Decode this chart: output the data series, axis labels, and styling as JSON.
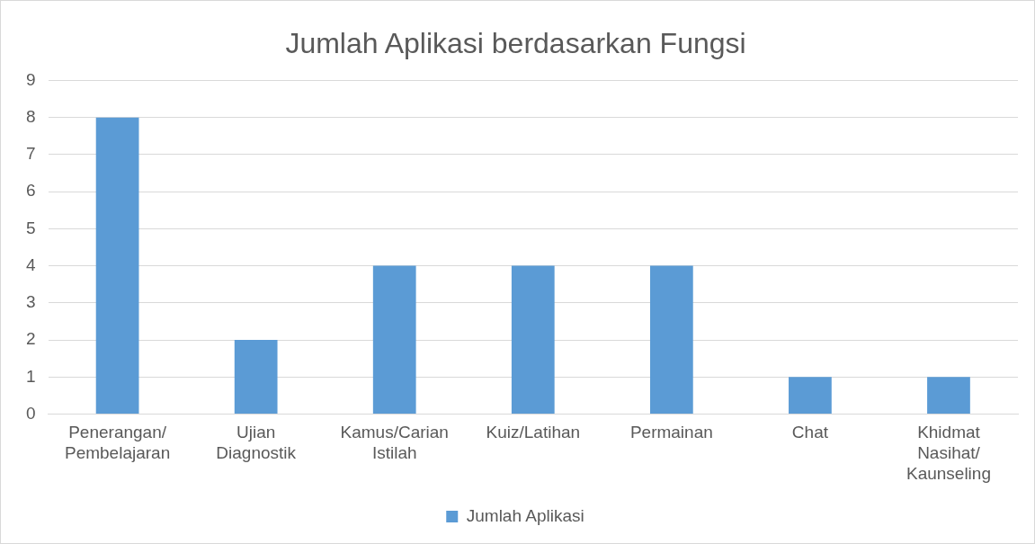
{
  "chart_data": {
    "type": "bar",
    "title": "Jumlah Aplikasi berdasarkan Fungsi",
    "categories": [
      "Penerangan/Pembelajaran",
      "Ujian Diagnostik",
      "Kamus/Carian Istilah",
      "Kuiz/Latihan",
      "Permainan",
      "Chat",
      "Khidmat Nasihat/Kaunseling"
    ],
    "series": [
      {
        "name": "Jumlah Aplikasi",
        "color": "#5b9bd5",
        "values": [
          8,
          2,
          4,
          4,
          4,
          1,
          1
        ]
      }
    ],
    "ylim": [
      0,
      9
    ],
    "yticks": [
      0,
      1,
      2,
      3,
      4,
      5,
      6,
      7,
      8,
      9
    ],
    "grid": "y",
    "legend": "bottom"
  }
}
